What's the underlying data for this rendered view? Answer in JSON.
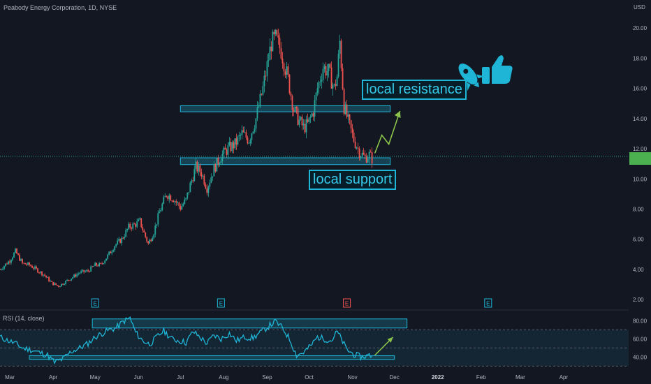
{
  "header": {
    "symbol_title": "Peabody Energy Corporation, 1D, NYSE",
    "currency": "USD"
  },
  "price_axis": {
    "ticks": [
      "20.00",
      "18.00",
      "16.00",
      "14.00",
      "12.00",
      "10.00",
      "8.00",
      "6.00",
      "4.00",
      "2.00"
    ],
    "last_price_tag": ""
  },
  "time_axis": {
    "ticks": [
      "Mar",
      "Apr",
      "May",
      "Jun",
      "Jul",
      "Aug",
      "Sep",
      "Oct",
      "Nov",
      "Dec",
      "2022",
      "Feb",
      "Mar",
      "Apr"
    ]
  },
  "rsi": {
    "title": "RSI (14, close)",
    "ticks": [
      "80.00",
      "60.00",
      "40.00"
    ]
  },
  "earnings_markers": [
    "E",
    "E",
    "E",
    "E"
  ],
  "annotations": {
    "resistance_label": "local resistance",
    "support_label": "local support",
    "rocket_icon": "rocket-icon",
    "thumbs_icon": "thumbs-up-icon"
  },
  "colors": {
    "background": "#131722",
    "up": "#26a69a",
    "down": "#ef5350",
    "zone": "#1fb5d6",
    "arrow": "#8bc34a",
    "rsi_line": "#1fb5d6"
  },
  "chart_data": {
    "type": "candlestick",
    "title": "Peabody Energy Corporation, 1D, NYSE",
    "ylim": [
      1.5,
      21.3
    ],
    "x_range": [
      "2021-02-22",
      "2022-04-30"
    ],
    "close_path": [
      [
        "2021-02-22",
        4.0
      ],
      [
        "2021-03-01",
        4.6
      ],
      [
        "2021-03-05",
        5.2
      ],
      [
        "2021-03-10",
        4.4
      ],
      [
        "2021-03-15",
        4.3
      ],
      [
        "2021-03-20",
        4.0
      ],
      [
        "2021-03-26",
        3.6
      ],
      [
        "2021-03-31",
        3.1
      ],
      [
        "2021-04-05",
        2.9
      ],
      [
        "2021-04-10",
        3.2
      ],
      [
        "2021-04-15",
        3.5
      ],
      [
        "2021-04-20",
        3.8
      ],
      [
        "2021-04-26",
        3.9
      ],
      [
        "2021-05-01",
        4.3
      ],
      [
        "2021-05-05",
        4.3
      ],
      [
        "2021-05-10",
        4.9
      ],
      [
        "2021-05-15",
        5.6
      ],
      [
        "2021-05-20",
        6.0
      ],
      [
        "2021-05-25",
        6.8
      ],
      [
        "2021-05-30",
        7.0
      ],
      [
        "2021-06-02",
        7.2
      ],
      [
        "2021-06-05",
        6.4
      ],
      [
        "2021-06-08",
        5.7
      ],
      [
        "2021-06-12",
        6.5
      ],
      [
        "2021-06-16",
        7.8
      ],
      [
        "2021-06-21",
        9.0
      ],
      [
        "2021-06-26",
        8.7
      ],
      [
        "2021-07-01",
        8.1
      ],
      [
        "2021-07-05",
        8.6
      ],
      [
        "2021-07-08",
        9.6
      ],
      [
        "2021-07-12",
        10.8
      ],
      [
        "2021-07-16",
        10.4
      ],
      [
        "2021-07-20",
        9.4
      ],
      [
        "2021-07-25",
        10.7
      ],
      [
        "2021-07-30",
        11.5
      ],
      [
        "2021-08-04",
        12.0
      ],
      [
        "2021-08-09",
        12.3
      ],
      [
        "2021-08-14",
        13.0
      ],
      [
        "2021-08-19",
        12.6
      ],
      [
        "2021-08-24",
        14.0
      ],
      [
        "2021-08-29",
        16.0
      ],
      [
        "2021-09-01",
        17.5
      ],
      [
        "2021-09-04",
        19.0
      ],
      [
        "2021-09-07",
        19.3
      ],
      [
        "2021-09-11",
        18.5
      ],
      [
        "2021-09-16",
        16.6
      ],
      [
        "2021-09-20",
        14.6
      ],
      [
        "2021-09-23",
        14.0
      ],
      [
        "2021-09-27",
        13.4
      ],
      [
        "2021-09-30",
        13.6
      ],
      [
        "2021-10-04",
        14.5
      ],
      [
        "2021-10-07",
        16.0
      ],
      [
        "2021-10-11",
        17.4
      ],
      [
        "2021-10-15",
        17.1
      ],
      [
        "2021-10-19",
        16.0
      ],
      [
        "2021-10-21",
        16.8
      ],
      [
        "2021-10-23",
        19.1
      ],
      [
        "2021-10-26",
        14.8
      ],
      [
        "2021-10-29",
        13.8
      ],
      [
        "2021-11-02",
        12.6
      ],
      [
        "2021-11-06",
        11.8
      ],
      [
        "2021-11-10",
        11.4
      ],
      [
        "2021-11-13",
        11.6
      ],
      [
        "2021-11-16",
        11.2
      ]
    ],
    "horizontal_line": {
      "price": 11.5,
      "note": "last price"
    },
    "zones": [
      {
        "label": "local resistance",
        "from": "2021-07-01",
        "to": "2021-11-28",
        "top": 14.85,
        "bottom": 14.45
      },
      {
        "label": "local support",
        "from": "2021-07-01",
        "to": "2021-11-28",
        "top": 11.4,
        "bottom": 10.95
      }
    ],
    "projection_arrow": [
      [
        "2021-11-17",
        11.7
      ],
      [
        "2021-11-22",
        12.9
      ],
      [
        "2021-11-27",
        12.3
      ],
      [
        "2021-12-05",
        14.5
      ]
    ],
    "earnings_dates": [
      "2021-05-01",
      "2021-07-30",
      "2021-10-28",
      "2022-02-06"
    ],
    "rsi_panel": {
      "title": "RSI (14, close)",
      "ylim": [
        28,
        88
      ],
      "levels": [
        70,
        50,
        30
      ],
      "path": [
        [
          "2021-02-22",
          62
        ],
        [
          "2021-02-28",
          58
        ],
        [
          "2021-03-05",
          55
        ],
        [
          "2021-03-10",
          50
        ],
        [
          "2021-03-16",
          48
        ],
        [
          "2021-03-22",
          45
        ],
        [
          "2021-03-28",
          42
        ],
        [
          "2021-04-02",
          34
        ],
        [
          "2021-04-08",
          38
        ],
        [
          "2021-04-14",
          46
        ],
        [
          "2021-04-20",
          50
        ],
        [
          "2021-04-26",
          55
        ],
        [
          "2021-05-01",
          62
        ],
        [
          "2021-05-06",
          66
        ],
        [
          "2021-05-11",
          70
        ],
        [
          "2021-05-16",
          72
        ],
        [
          "2021-05-21",
          79
        ],
        [
          "2021-05-26",
          83
        ],
        [
          "2021-05-30",
          67
        ],
        [
          "2021-06-04",
          58
        ],
        [
          "2021-06-09",
          54
        ],
        [
          "2021-06-14",
          62
        ],
        [
          "2021-06-19",
          69
        ],
        [
          "2021-06-25",
          60
        ],
        [
          "2021-06-30",
          58
        ],
        [
          "2021-07-05",
          56
        ],
        [
          "2021-07-10",
          68
        ],
        [
          "2021-07-15",
          62
        ],
        [
          "2021-07-20",
          55
        ],
        [
          "2021-07-25",
          64
        ],
        [
          "2021-07-30",
          60
        ],
        [
          "2021-08-05",
          66
        ],
        [
          "2021-08-10",
          58
        ],
        [
          "2021-08-16",
          62
        ],
        [
          "2021-08-22",
          61
        ],
        [
          "2021-08-28",
          68
        ],
        [
          "2021-09-03",
          75
        ],
        [
          "2021-09-07",
          79
        ],
        [
          "2021-09-12",
          72
        ],
        [
          "2021-09-17",
          60
        ],
        [
          "2021-09-22",
          42
        ],
        [
          "2021-09-27",
          45
        ],
        [
          "2021-10-02",
          52
        ],
        [
          "2021-10-07",
          62
        ],
        [
          "2021-10-12",
          60
        ],
        [
          "2021-10-17",
          58
        ],
        [
          "2021-10-21",
          68
        ],
        [
          "2021-10-24",
          60
        ],
        [
          "2021-10-28",
          48
        ],
        [
          "2021-11-03",
          42
        ],
        [
          "2021-11-08",
          40
        ],
        [
          "2021-11-13",
          42
        ],
        [
          "2021-11-16",
          41
        ]
      ],
      "zones": [
        {
          "from": "2021-04-29",
          "to": "2021-12-10",
          "top": 82,
          "bottom": 72
        },
        {
          "from": "2021-03-15",
          "to": "2021-12-01",
          "top": 41.5,
          "bottom": 37.5
        }
      ],
      "arrow": [
        [
          "2021-11-17",
          42
        ],
        [
          "2021-11-30",
          62
        ]
      ]
    }
  }
}
